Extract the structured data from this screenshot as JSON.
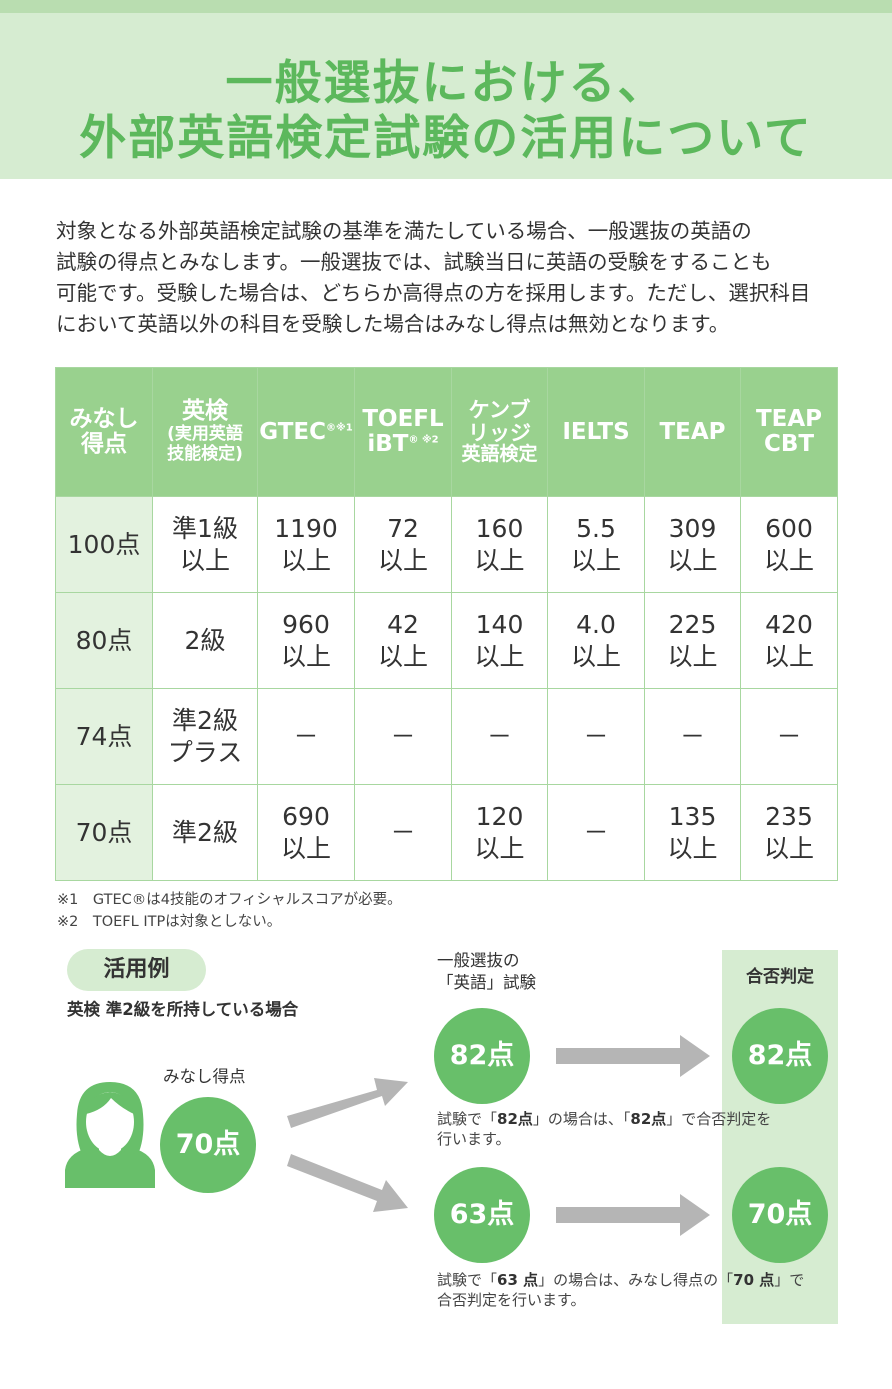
{
  "title": {
    "line1": "一般選抜における、",
    "line2": "外部英語検定試験の活用について"
  },
  "intro": [
    "対象となる外部英語検定試験の基準を満たしている場合、一般選抜の英語の",
    "試験の得点とみなします。一般選抜では、試験当日に英語の受験をすることも",
    "可能です。受験した場合は、どちらか高得点の方を採用します。ただし、選択科目",
    "において英語以外の科目を受験した場合はみなし得点は無効となります。"
  ],
  "table": {
    "headers": {
      "score": [
        "みなし",
        "得点"
      ],
      "eiken": "英検",
      "eiken_sub": [
        "(実用英語",
        "技能検定)"
      ],
      "gtec": "GTEC",
      "gtec_mark": "®※1",
      "toefl1": "TOEFL",
      "toefl2": "iBT",
      "toefl_mark": "® ※2",
      "cambridge": [
        "ケンブ",
        "リッジ",
        "英語検定"
      ],
      "ielts": "IELTS",
      "teap": "TEAP",
      "teapcbt": [
        "TEAP",
        "CBT"
      ]
    },
    "rows": [
      {
        "score": "100点",
        "eiken": [
          "準1級",
          "以上"
        ],
        "gtec": [
          "1190",
          "以上"
        ],
        "toefl": [
          "72",
          "以上"
        ],
        "cambridge": [
          "160",
          "以上"
        ],
        "ielts": [
          "5.5",
          "以上"
        ],
        "teap": [
          "309",
          "以上"
        ],
        "teapcbt": [
          "600",
          "以上"
        ]
      },
      {
        "score": "80点",
        "eiken": [
          "2級"
        ],
        "gtec": [
          "960",
          "以上"
        ],
        "toefl": [
          "42",
          "以上"
        ],
        "cambridge": [
          "140",
          "以上"
        ],
        "ielts": [
          "4.0",
          "以上"
        ],
        "teap": [
          "225",
          "以上"
        ],
        "teapcbt": [
          "420",
          "以上"
        ]
      },
      {
        "score": "74点",
        "eiken": [
          "準2級",
          "プラス"
        ],
        "gtec": [
          "－"
        ],
        "toefl": [
          "－"
        ],
        "cambridge": [
          "－"
        ],
        "ielts": [
          "－"
        ],
        "teap": [
          "－"
        ],
        "teapcbt": [
          "－"
        ]
      },
      {
        "score": "70点",
        "eiken": [
          "準2級"
        ],
        "gtec": [
          "690",
          "以上"
        ],
        "toefl": [
          "－"
        ],
        "cambridge": [
          "120",
          "以上"
        ],
        "ielts": [
          "－"
        ],
        "teap": [
          "135",
          "以上"
        ],
        "teapcbt": [
          "235",
          "以上"
        ]
      }
    ]
  },
  "notes": {
    "n1": "※1　GTEC®は4技能のオフィシャルスコアが必要。",
    "n2": "※2　TOEFL ITPは対象としない。"
  },
  "example": {
    "pill": "活用例",
    "desc": "英検 準2級を所持している場合",
    "exam_label": [
      "一般選抜の",
      "「英語」試験"
    ],
    "judge_label": "合否判定",
    "deemed_label": "みなし得点",
    "deemed_score": "70点",
    "case1": {
      "exam": "82点",
      "result": "82点",
      "caption1_pre": "試験で「",
      "caption1_s1": "82点",
      "caption1_mid": "」の場合は、「",
      "caption1_s2": "82点",
      "caption1_post": "」で合否判定を",
      "caption2": "行います。"
    },
    "case2": {
      "exam": "63点",
      "result": "70点",
      "caption1_pre": "試験で「",
      "caption1_s1": "63 点",
      "caption1_mid": "」の場合は、みなし得点の「",
      "caption1_s2": "70 点",
      "caption1_post": "」で",
      "caption2": "合否判定を行います。"
    }
  },
  "colors": {
    "accent": "#68bf6a",
    "band": "#d6ecd1",
    "header": "#99d18e",
    "arrow": "#b5b5b5"
  }
}
